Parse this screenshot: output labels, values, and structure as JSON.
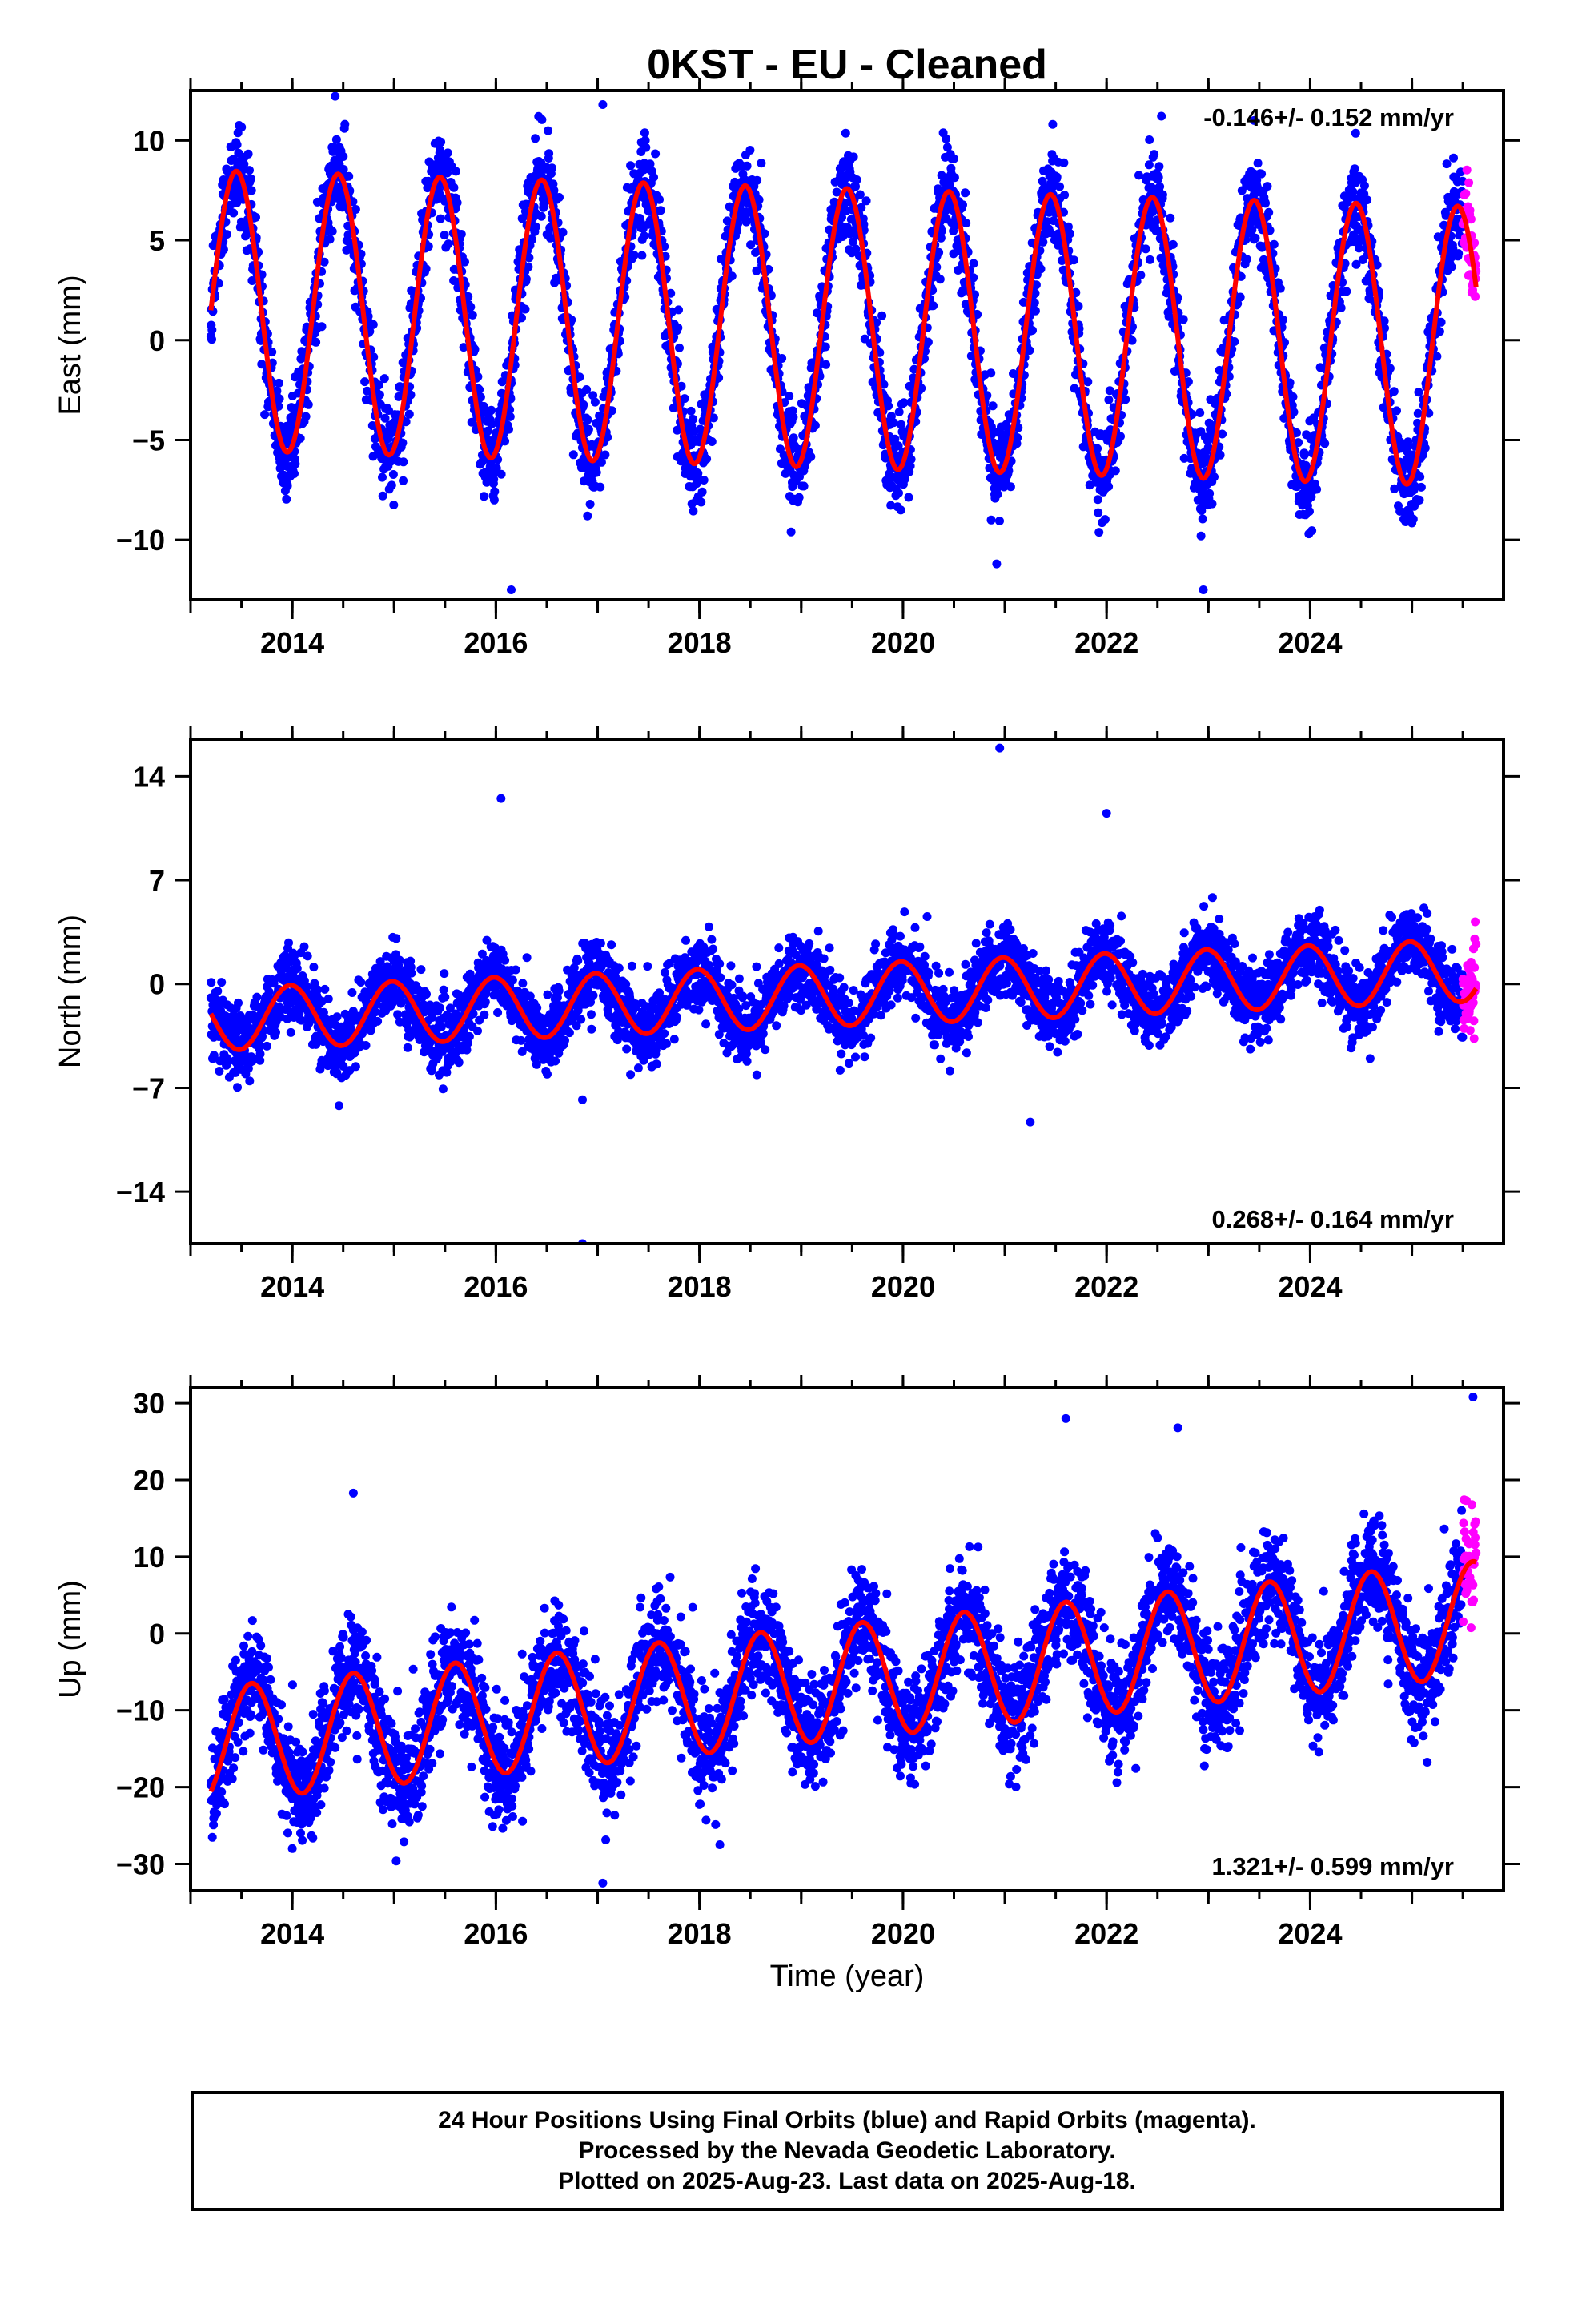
{
  "title": "0KST  - EU - Cleaned",
  "x_axis_label": "Time (year)",
  "caption": {
    "line1": "24 Hour Positions Using Final Orbits (blue) and Rapid Orbits (magenta).",
    "line2": "Processed by the Nevada Geodetic Laboratory.",
    "line3": "Plotted on 2025-Aug-23. Last data on 2025-Aug-18."
  },
  "colors": {
    "final_orbits": "#0000ff",
    "rapid_orbits": "#ff00ff",
    "model": "#ff0000"
  },
  "chart_data": [
    {
      "type": "scatter",
      "component": "east",
      "ylabel": "East (mm)",
      "xlim": [
        2013.0,
        2025.9
      ],
      "ylim": [
        -13,
        12.5
      ],
      "x_ticks": [
        2014,
        2016,
        2018,
        2020,
        2022,
        2024
      ],
      "y_ticks": [
        10,
        5,
        0,
        -5,
        -10
      ],
      "y_tick_labels": [
        "10",
        "5",
        "0",
        "−5",
        "−10"
      ],
      "rate_text": "-0.146+/- 0.152 mm/yr",
      "rate_position": "top-right",
      "data_start": 2013.2,
      "data_end": 2025.63,
      "rapid_start": 2025.5,
      "model": {
        "offset": 1.5,
        "trend_mm_per_yr": -0.146,
        "annual_amplitude": 7.0,
        "annual_peak": 0.45,
        "semiannual_amplitude": 0.0,
        "semiannual_peak": 0.0
      },
      "scatter_sd": 1.2,
      "outliers": [
        [
          2016.15,
          -12.5
        ],
        [
          2017.05,
          11.8
        ],
        [
          2020.92,
          -11.2
        ],
        [
          2022.95,
          -12.5
        ],
        [
          2023.45,
          11.0
        ],
        [
          2016.9,
          -8.8
        ],
        [
          2018.9,
          -9.6
        ]
      ],
      "series": [
        {
          "name": "Final Orbits (blue)",
          "color": "#0000ff"
        },
        {
          "name": "Rapid Orbits (magenta)",
          "color": "#ff00ff"
        },
        {
          "name": "Model fit",
          "color": "#ff0000"
        }
      ]
    },
    {
      "type": "scatter",
      "component": "north",
      "ylabel": "North (mm)",
      "xlim": [
        2013.0,
        2025.9
      ],
      "ylim": [
        -17.5,
        16.5
      ],
      "x_ticks": [
        2014,
        2016,
        2018,
        2020,
        2022,
        2024
      ],
      "y_ticks": [
        14,
        7,
        0,
        -7,
        -14
      ],
      "y_tick_labels": [
        "14",
        "7",
        "0",
        "−7",
        "−14"
      ],
      "rate_text": "0.268+/- 0.164 mm/yr",
      "rate_position": "bottom-right",
      "data_start": 2013.2,
      "data_end": 2025.63,
      "rapid_start": 2025.5,
      "model": {
        "offset": -2.4,
        "trend_mm_per_yr": 0.268,
        "annual_amplitude": 2.1,
        "annual_peak": 0.98,
        "semiannual_amplitude": 0.0,
        "semiannual_peak": 0.0
      },
      "scatter_sd": 1.2,
      "outliers": [
        [
          2016.05,
          12.5
        ],
        [
          2020.95,
          15.9
        ],
        [
          2016.85,
          -17.5
        ],
        [
          2022.0,
          11.5
        ],
        [
          2021.25,
          -9.3
        ],
        [
          2016.85,
          -7.8
        ]
      ],
      "series": [
        {
          "name": "Final Orbits (blue)",
          "color": "#0000ff"
        },
        {
          "name": "Rapid Orbits (magenta)",
          "color": "#ff00ff"
        },
        {
          "name": "Model fit",
          "color": "#ff0000"
        }
      ]
    },
    {
      "type": "scatter",
      "component": "up",
      "ylabel": "Up (mm)",
      "xlim": [
        2013.0,
        2025.9
      ],
      "ylim": [
        -33.5,
        32
      ],
      "x_ticks": [
        2014,
        2016,
        2018,
        2020,
        2022,
        2024
      ],
      "y_ticks": [
        30,
        20,
        10,
        0,
        -10,
        -20,
        -30
      ],
      "y_tick_labels": [
        "30",
        "20",
        "10",
        "0",
        "−10",
        "−20",
        "−30"
      ],
      "rate_text": "1.321+/- 0.599 mm/yr",
      "rate_position": "bottom-right",
      "data_start": 2013.2,
      "data_end": 2025.63,
      "rapid_start": 2025.5,
      "model": {
        "offset": -14.5,
        "trend_mm_per_yr": 1.321,
        "annual_amplitude": 7.5,
        "annual_peak": 0.6,
        "semiannual_amplitude": 0.0,
        "semiannual_peak": 0.0
      },
      "scatter_sd": 3.6,
      "outliers": [
        [
          2017.05,
          -32.5
        ],
        [
          2021.6,
          28.0
        ],
        [
          2022.7,
          26.8
        ],
        [
          2025.6,
          30.8
        ],
        [
          2014.0,
          -28.0
        ],
        [
          2018.2,
          -27.5
        ],
        [
          2014.6,
          18.3
        ]
      ],
      "series": [
        {
          "name": "Final Orbits (blue)",
          "color": "#0000ff"
        },
        {
          "name": "Rapid Orbits (magenta)",
          "color": "#ff00ff"
        },
        {
          "name": "Model fit",
          "color": "#ff0000"
        }
      ]
    }
  ]
}
